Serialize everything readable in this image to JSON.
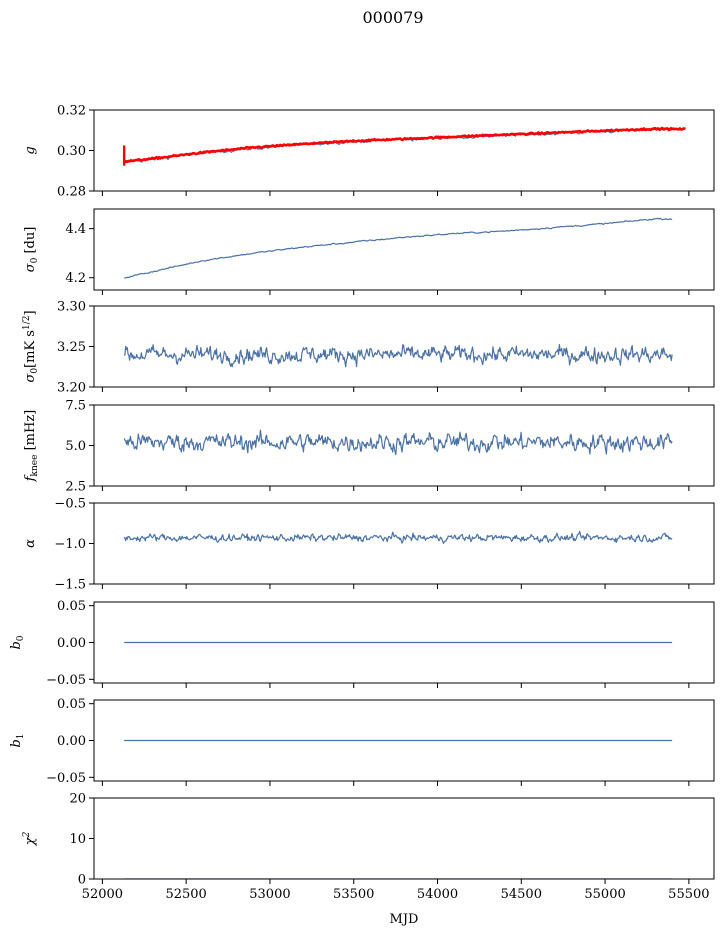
{
  "figure": {
    "title": "000079",
    "xlabel": "MJD"
  },
  "colors": {
    "series": "#4c72a4",
    "fit": "#ff0000",
    "axes": "#000000"
  },
  "chart_data": {
    "type": "line",
    "title": "000079",
    "xlabel": "MJD",
    "shared_x": true,
    "xlim": [
      51950,
      55650
    ],
    "x_ticks": [
      52000,
      52500,
      53000,
      53500,
      54000,
      54500,
      55000,
      55500
    ],
    "x_tick_labels": [
      "52000",
      "52500",
      "53000",
      "53500",
      "54000",
      "54500",
      "55000",
      "55500"
    ],
    "grid": false,
    "panels": [
      {
        "key": "g",
        "ylabel": "g",
        "ylim": [
          0.28,
          0.32
        ],
        "y_ticks": [
          0.28,
          0.3,
          0.32
        ],
        "y_tick_labels": [
          "0.28",
          "0.30",
          "0.32"
        ],
        "series": [
          {
            "style": "blue",
            "mode": "dense",
            "x": [
              52130,
              52300,
              52600,
              52900,
              53200,
              53500,
              53800,
              54100,
              54400,
              54700,
              55000,
              55300,
              55400
            ],
            "y": [
              0.2945,
              0.2955,
              0.299,
              0.301,
              0.303,
              0.3045,
              0.3055,
              0.3065,
              0.3075,
              0.3085,
              0.3095,
              0.3105,
              0.3108
            ],
            "noise": 0.0008
          },
          {
            "style": "red",
            "mode": "smooth",
            "x": [
              52130,
              52300,
              52600,
              52900,
              53200,
              53500,
              53800,
              54100,
              54400,
              54700,
              55000,
              55300,
              55480
            ],
            "y": [
              0.2945,
              0.296,
              0.299,
              0.3015,
              0.3032,
              0.3047,
              0.3057,
              0.3068,
              0.3078,
              0.3088,
              0.3098,
              0.3107,
              0.3105
            ],
            "noise": 0.0004,
            "spike": {
              "x": 52130,
              "y_low": 0.2925,
              "y_high": 0.3025
            }
          }
        ]
      },
      {
        "key": "sigma0_du",
        "ylabel": "σ0 [du]",
        "ylim": [
          4.15,
          4.48
        ],
        "y_ticks": [
          4.2,
          4.4
        ],
        "y_tick_labels": [
          "4.2",
          "4.4"
        ],
        "series": [
          {
            "style": "blue",
            "mode": "dense",
            "x": [
              52130,
              52300,
              52600,
              52900,
              53200,
              53500,
              53800,
              54100,
              54400,
              54700,
              55000,
              55300,
              55400
            ],
            "y": [
              4.2,
              4.225,
              4.27,
              4.3,
              4.325,
              4.345,
              4.365,
              4.38,
              4.39,
              4.405,
              4.42,
              4.44,
              4.44
            ],
            "noise": 0.003
          }
        ]
      },
      {
        "key": "sigma0_mK",
        "ylabel": "σ0[mK s^1/2]",
        "ylim": [
          3.2,
          3.3
        ],
        "y_ticks": [
          3.2,
          3.25,
          3.3
        ],
        "y_tick_labels": [
          "3.20",
          "3.25",
          "3.30"
        ],
        "series": [
          {
            "style": "blue",
            "mode": "noisy",
            "x": [
              52130,
              55400
            ],
            "y": [
              3.24,
              3.24
            ],
            "noise": 0.01
          }
        ]
      },
      {
        "key": "fknee",
        "ylabel": "fknee [mHz]",
        "ylim": [
          2.5,
          7.5
        ],
        "y_ticks": [
          2.5,
          5.0,
          7.5
        ],
        "y_tick_labels": [
          "2.5",
          "5.0",
          "7.5"
        ],
        "series": [
          {
            "style": "blue",
            "mode": "noisy",
            "x": [
              52130,
              55400
            ],
            "y": [
              5.2,
              5.2
            ],
            "noise": 0.55
          }
        ]
      },
      {
        "key": "alpha",
        "ylabel": "α",
        "ylim": [
          -1.5,
          -0.5
        ],
        "y_ticks": [
          -1.5,
          -1.0,
          -0.5
        ],
        "y_tick_labels": [
          "−1.5",
          "−1.0",
          "−0.5"
        ],
        "series": [
          {
            "style": "blue",
            "mode": "noisy",
            "x": [
              52130,
              55400
            ],
            "y": [
              -0.93,
              -0.93
            ],
            "noise": 0.045
          }
        ]
      },
      {
        "key": "b0",
        "ylabel": "b0",
        "ylim": [
          -0.055,
          0.055
        ],
        "y_ticks": [
          -0.05,
          0.0,
          0.05
        ],
        "y_tick_labels": [
          "−0.05",
          "0.00",
          "0.05"
        ],
        "series": [
          {
            "style": "blue",
            "mode": "flat",
            "x": [
              52130,
              55400
            ],
            "y": [
              0,
              0
            ]
          }
        ]
      },
      {
        "key": "b1",
        "ylabel": "b1",
        "ylim": [
          -0.055,
          0.055
        ],
        "y_ticks": [
          -0.05,
          0.0,
          0.05
        ],
        "y_tick_labels": [
          "−0.05",
          "0.00",
          "0.05"
        ],
        "series": [
          {
            "style": "blue",
            "mode": "flat",
            "x": [
              52130,
              55400
            ],
            "y": [
              0,
              0
            ]
          }
        ]
      },
      {
        "key": "chi2",
        "ylabel": "χ2",
        "ylim": [
          0,
          20
        ],
        "y_ticks": [
          0,
          10,
          20
        ],
        "y_tick_labels": [
          "0",
          "10",
          "20"
        ],
        "series": [
          {
            "style": "blue",
            "mode": "flat",
            "x": [
              52130,
              55400
            ],
            "y": [
              0,
              0
            ]
          }
        ]
      }
    ]
  }
}
